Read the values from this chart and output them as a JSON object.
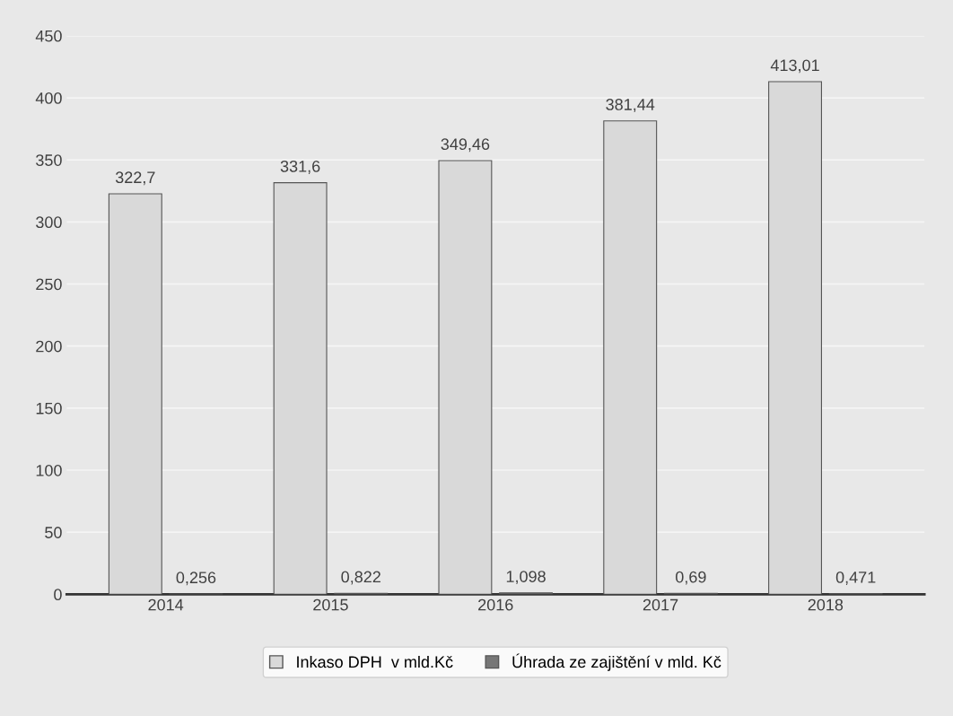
{
  "chart_data": {
    "type": "bar",
    "categories": [
      "2014",
      "2015",
      "2016",
      "2017",
      "2018"
    ],
    "series": [
      {
        "name": "Inkaso DPH  v mld.Kč",
        "color": "#d9d9d9",
        "values": [
          322.7,
          331.6,
          349.46,
          381.44,
          413.01
        ],
        "value_labels": [
          "322,7",
          "331,6",
          "349,46",
          "381,44",
          "413,01"
        ]
      },
      {
        "name": "Úhrada ze zajištění v mld. Kč",
        "color": "#767676",
        "values": [
          0.256,
          0.822,
          1.098,
          0.69,
          0.471
        ],
        "value_labels": [
          "0,256",
          "0,822",
          "1,098",
          "0,69",
          "0,471"
        ]
      }
    ],
    "ylim": [
      0,
      450
    ],
    "yticks": [
      0,
      50,
      100,
      150,
      200,
      250,
      300,
      350,
      400,
      450
    ],
    "grid": "y",
    "legend": "bottom"
  }
}
